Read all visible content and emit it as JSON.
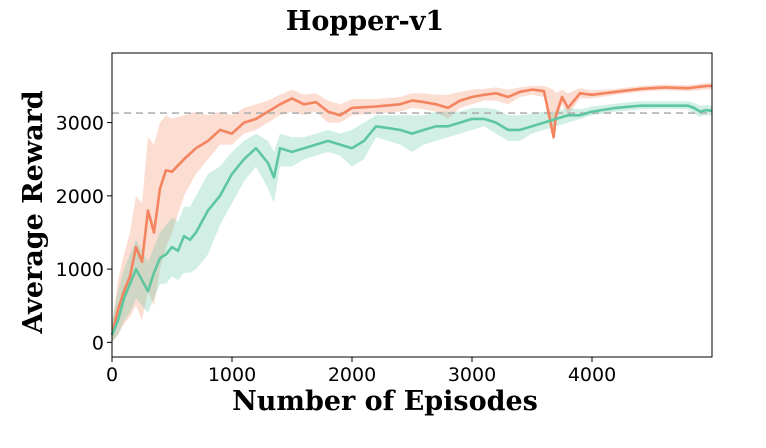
{
  "chart_data": {
    "type": "line",
    "title": "Hopper-v1",
    "xlabel": "Number of Episodes",
    "ylabel": "Average Reward",
    "xlim": [
      0,
      5000
    ],
    "ylim": [
      -200,
      3950
    ],
    "x_ticks": [
      0,
      1000,
      2000,
      3000,
      4000
    ],
    "y_ticks": [
      0,
      1000,
      2000,
      3000
    ],
    "grid": false,
    "legend": "none",
    "reference_line": {
      "y": 3130,
      "style": "dashed",
      "color": "#b0b0b0"
    },
    "series": [
      {
        "color": "#f4845f",
        "x": [
          0,
          50,
          100,
          150,
          200,
          250,
          300,
          350,
          400,
          450,
          500,
          600,
          700,
          800,
          900,
          1000,
          1100,
          1200,
          1300,
          1400,
          1500,
          1600,
          1700,
          1800,
          1900,
          2000,
          2200,
          2400,
          2500,
          2600,
          2700,
          2800,
          2900,
          3000,
          3100,
          3200,
          3300,
          3400,
          3500,
          3600,
          3680,
          3700,
          3750,
          3800,
          3900,
          4000,
          4200,
          4400,
          4600,
          4800,
          4950,
          5000
        ],
        "y": [
          100,
          450,
          700,
          900,
          1300,
          1100,
          1800,
          1500,
          2100,
          2350,
          2330,
          2500,
          2650,
          2750,
          2900,
          2850,
          3000,
          3050,
          3150,
          3250,
          3330,
          3250,
          3280,
          3150,
          3100,
          3200,
          3220,
          3250,
          3300,
          3280,
          3250,
          3200,
          3300,
          3350,
          3380,
          3400,
          3350,
          3420,
          3450,
          3430,
          2800,
          3100,
          3350,
          3200,
          3400,
          3380,
          3420,
          3460,
          3480,
          3470,
          3500,
          3500
        ],
        "lower": [
          0,
          100,
          250,
          350,
          500,
          300,
          700,
          500,
          1000,
          1300,
          1500,
          2000,
          2300,
          2500,
          2700,
          2700,
          2850,
          2900,
          3000,
          3100,
          3150,
          3100,
          3150,
          3000,
          3000,
          3100,
          3120,
          3150,
          3200,
          3180,
          3150,
          3050,
          3200,
          3250,
          3300,
          3300,
          3250,
          3350,
          3380,
          3350,
          2750,
          3000,
          3250,
          3100,
          3330,
          3330,
          3380,
          3420,
          3440,
          3430,
          3450,
          3450
        ],
        "upper": [
          250,
          850,
          1200,
          1500,
          2000,
          1900,
          2800,
          2700,
          3000,
          3100,
          3050,
          3100,
          3150,
          3100,
          3150,
          3100,
          3200,
          3250,
          3300,
          3380,
          3450,
          3380,
          3400,
          3300,
          3250,
          3320,
          3320,
          3350,
          3400,
          3400,
          3380,
          3380,
          3420,
          3450,
          3460,
          3480,
          3450,
          3480,
          3500,
          3500,
          3450,
          3400,
          3450,
          3400,
          3470,
          3440,
          3460,
          3500,
          3520,
          3510,
          3540,
          3540
        ]
      },
      {
        "color": "#5ec7a0",
        "x": [
          0,
          50,
          100,
          150,
          200,
          250,
          300,
          350,
          400,
          450,
          500,
          550,
          600,
          650,
          700,
          800,
          900,
          1000,
          1100,
          1200,
          1300,
          1350,
          1400,
          1500,
          1600,
          1700,
          1800,
          1900,
          2000,
          2100,
          2200,
          2400,
          2500,
          2600,
          2700,
          2800,
          2900,
          3000,
          3100,
          3200,
          3300,
          3400,
          3500,
          3600,
          3700,
          3800,
          3900,
          4000,
          4200,
          4400,
          4600,
          4800,
          4850,
          4900,
          4950,
          5000
        ],
        "y": [
          100,
          300,
          600,
          800,
          1000,
          850,
          700,
          950,
          1150,
          1200,
          1300,
          1250,
          1450,
          1400,
          1500,
          1800,
          2000,
          2300,
          2500,
          2650,
          2450,
          2250,
          2650,
          2600,
          2650,
          2700,
          2750,
          2700,
          2650,
          2750,
          2950,
          2900,
          2850,
          2900,
          2950,
          2950,
          3000,
          3050,
          3050,
          3000,
          2900,
          2900,
          2950,
          3000,
          3050,
          3100,
          3100,
          3150,
          3200,
          3230,
          3230,
          3230,
          3200,
          3150,
          3170,
          3160
        ],
        "lower": [
          0,
          100,
          300,
          400,
          600,
          500,
          400,
          600,
          800,
          800,
          900,
          850,
          950,
          950,
          1000,
          1200,
          1600,
          1900,
          2200,
          2400,
          2100,
          1900,
          2400,
          2400,
          2500,
          2550,
          2600,
          2550,
          2400,
          2500,
          2800,
          2700,
          2600,
          2700,
          2750,
          2800,
          2850,
          2900,
          2950,
          2850,
          2750,
          2750,
          2850,
          2900,
          2950,
          3000,
          3050,
          3100,
          3150,
          3180,
          3190,
          3180,
          3120,
          3080,
          3100,
          3100
        ],
        "upper": [
          300,
          700,
          1000,
          1200,
          1400,
          1250,
          1100,
          1300,
          1500,
          1600,
          1700,
          1650,
          1850,
          1850,
          2000,
          2300,
          2400,
          2600,
          2750,
          2850,
          2750,
          2600,
          2850,
          2800,
          2800,
          2850,
          2900,
          2850,
          2900,
          3000,
          3100,
          3100,
          3100,
          3100,
          3150,
          3150,
          3150,
          3200,
          3200,
          3180,
          3100,
          3100,
          3120,
          3150,
          3150,
          3200,
          3180,
          3220,
          3260,
          3290,
          3290,
          3290,
          3270,
          3230,
          3240,
          3230
        ]
      }
    ]
  }
}
